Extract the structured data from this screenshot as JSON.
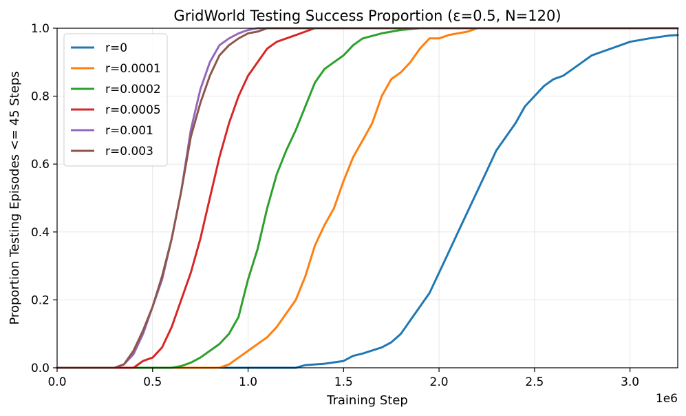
{
  "chart_data": {
    "type": "line",
    "title": "GridWorld Testing Success Proportion (ε=0.5, N=120)",
    "xlabel": "Training Step",
    "ylabel": "Proportion Testing Episodes <= 45 Steps",
    "x_offset_label": "1e6",
    "xlim": [
      0,
      3.25
    ],
    "ylim": [
      0,
      1.0
    ],
    "x_scale_note": "x values in units of 1e6 steps",
    "xticks": [
      0.0,
      0.5,
      1.0,
      1.5,
      2.0,
      2.5,
      3.0
    ],
    "xtick_labels": [
      "0.0",
      "0.5",
      "1.0",
      "1.5",
      "2.0",
      "2.5",
      "3.0"
    ],
    "yticks": [
      0.0,
      0.2,
      0.4,
      0.6,
      0.8,
      1.0
    ],
    "ytick_labels": [
      "0.0",
      "0.2",
      "0.4",
      "0.6",
      "0.8",
      "1.0"
    ],
    "grid": true,
    "legend_position": "top-left",
    "series": [
      {
        "name": "r=0",
        "color": "#1f77b4",
        "points": [
          [
            0,
            0
          ],
          [
            1.25,
            0
          ],
          [
            1.3,
            0.008
          ],
          [
            1.4,
            0.012
          ],
          [
            1.5,
            0.02
          ],
          [
            1.55,
            0.035
          ],
          [
            1.6,
            0.042
          ],
          [
            1.7,
            0.06
          ],
          [
            1.75,
            0.075
          ],
          [
            1.8,
            0.1
          ],
          [
            1.85,
            0.14
          ],
          [
            1.9,
            0.18
          ],
          [
            1.95,
            0.22
          ],
          [
            2.0,
            0.28
          ],
          [
            2.05,
            0.34
          ],
          [
            2.1,
            0.4
          ],
          [
            2.15,
            0.46
          ],
          [
            2.2,
            0.52
          ],
          [
            2.25,
            0.58
          ],
          [
            2.3,
            0.64
          ],
          [
            2.35,
            0.68
          ],
          [
            2.4,
            0.72
          ],
          [
            2.45,
            0.77
          ],
          [
            2.5,
            0.8
          ],
          [
            2.55,
            0.83
          ],
          [
            2.6,
            0.85
          ],
          [
            2.65,
            0.86
          ],
          [
            2.7,
            0.88
          ],
          [
            2.75,
            0.9
          ],
          [
            2.8,
            0.92
          ],
          [
            2.85,
            0.93
          ],
          [
            2.9,
            0.94
          ],
          [
            2.95,
            0.95
          ],
          [
            3.0,
            0.96
          ],
          [
            3.1,
            0.97
          ],
          [
            3.2,
            0.978
          ],
          [
            3.25,
            0.98
          ]
        ]
      },
      {
        "name": "r=0.0001",
        "color": "#ff7f0e",
        "points": [
          [
            0,
            0
          ],
          [
            0.85,
            0
          ],
          [
            0.9,
            0.01
          ],
          [
            0.95,
            0.03
          ],
          [
            1.0,
            0.05
          ],
          [
            1.05,
            0.07
          ],
          [
            1.1,
            0.09
          ],
          [
            1.15,
            0.12
          ],
          [
            1.2,
            0.16
          ],
          [
            1.25,
            0.2
          ],
          [
            1.3,
            0.27
          ],
          [
            1.35,
            0.36
          ],
          [
            1.4,
            0.42
          ],
          [
            1.45,
            0.47
          ],
          [
            1.5,
            0.55
          ],
          [
            1.55,
            0.62
          ],
          [
            1.6,
            0.67
          ],
          [
            1.65,
            0.72
          ],
          [
            1.7,
            0.8
          ],
          [
            1.75,
            0.85
          ],
          [
            1.8,
            0.87
          ],
          [
            1.85,
            0.9
          ],
          [
            1.9,
            0.94
          ],
          [
            1.95,
            0.97
          ],
          [
            2.0,
            0.97
          ],
          [
            2.05,
            0.98
          ],
          [
            2.1,
            0.985
          ],
          [
            2.15,
            0.99
          ],
          [
            2.2,
            1.0
          ],
          [
            3.25,
            1.0
          ]
        ]
      },
      {
        "name": "r=0.0002",
        "color": "#2ca02c",
        "points": [
          [
            0,
            0
          ],
          [
            0.6,
            0
          ],
          [
            0.65,
            0.005
          ],
          [
            0.7,
            0.015
          ],
          [
            0.75,
            0.03
          ],
          [
            0.8,
            0.05
          ],
          [
            0.85,
            0.07
          ],
          [
            0.9,
            0.1
          ],
          [
            0.95,
            0.15
          ],
          [
            1.0,
            0.26
          ],
          [
            1.05,
            0.35
          ],
          [
            1.1,
            0.47
          ],
          [
            1.15,
            0.57
          ],
          [
            1.2,
            0.64
          ],
          [
            1.25,
            0.7
          ],
          [
            1.3,
            0.77
          ],
          [
            1.35,
            0.84
          ],
          [
            1.4,
            0.88
          ],
          [
            1.45,
            0.9
          ],
          [
            1.5,
            0.92
          ],
          [
            1.55,
            0.95
          ],
          [
            1.6,
            0.97
          ],
          [
            1.7,
            0.985
          ],
          [
            1.8,
            0.995
          ],
          [
            1.9,
            1.0
          ],
          [
            3.25,
            1.0
          ]
        ]
      },
      {
        "name": "r=0.0005",
        "color": "#d62728",
        "points": [
          [
            0,
            0
          ],
          [
            0.4,
            0
          ],
          [
            0.45,
            0.02
          ],
          [
            0.5,
            0.03
          ],
          [
            0.55,
            0.06
          ],
          [
            0.6,
            0.12
          ],
          [
            0.65,
            0.2
          ],
          [
            0.7,
            0.28
          ],
          [
            0.75,
            0.38
          ],
          [
            0.8,
            0.5
          ],
          [
            0.85,
            0.62
          ],
          [
            0.9,
            0.72
          ],
          [
            0.95,
            0.8
          ],
          [
            1.0,
            0.86
          ],
          [
            1.05,
            0.9
          ],
          [
            1.1,
            0.94
          ],
          [
            1.15,
            0.96
          ],
          [
            1.2,
            0.97
          ],
          [
            1.25,
            0.98
          ],
          [
            1.3,
            0.99
          ],
          [
            1.35,
            1.0
          ],
          [
            3.25,
            1.0
          ]
        ]
      },
      {
        "name": "r=0.001",
        "color": "#9467bd",
        "points": [
          [
            0,
            0
          ],
          [
            0.3,
            0
          ],
          [
            0.35,
            0.01
          ],
          [
            0.4,
            0.04
          ],
          [
            0.45,
            0.1
          ],
          [
            0.5,
            0.18
          ],
          [
            0.55,
            0.26
          ],
          [
            0.6,
            0.38
          ],
          [
            0.65,
            0.52
          ],
          [
            0.7,
            0.7
          ],
          [
            0.75,
            0.82
          ],
          [
            0.8,
            0.9
          ],
          [
            0.85,
            0.95
          ],
          [
            0.9,
            0.97
          ],
          [
            0.95,
            0.985
          ],
          [
            1.0,
            0.995
          ],
          [
            1.05,
            1.0
          ],
          [
            3.25,
            1.0
          ]
        ]
      },
      {
        "name": "r=0.003",
        "color": "#8c564b",
        "points": [
          [
            0,
            0
          ],
          [
            0.3,
            0
          ],
          [
            0.35,
            0.01
          ],
          [
            0.4,
            0.05
          ],
          [
            0.45,
            0.11
          ],
          [
            0.5,
            0.18
          ],
          [
            0.55,
            0.27
          ],
          [
            0.6,
            0.38
          ],
          [
            0.65,
            0.52
          ],
          [
            0.7,
            0.68
          ],
          [
            0.75,
            0.78
          ],
          [
            0.8,
            0.86
          ],
          [
            0.85,
            0.92
          ],
          [
            0.9,
            0.95
          ],
          [
            0.95,
            0.97
          ],
          [
            1.0,
            0.985
          ],
          [
            1.05,
            0.99
          ],
          [
            1.1,
            1.0
          ],
          [
            3.25,
            1.0
          ]
        ]
      }
    ]
  }
}
